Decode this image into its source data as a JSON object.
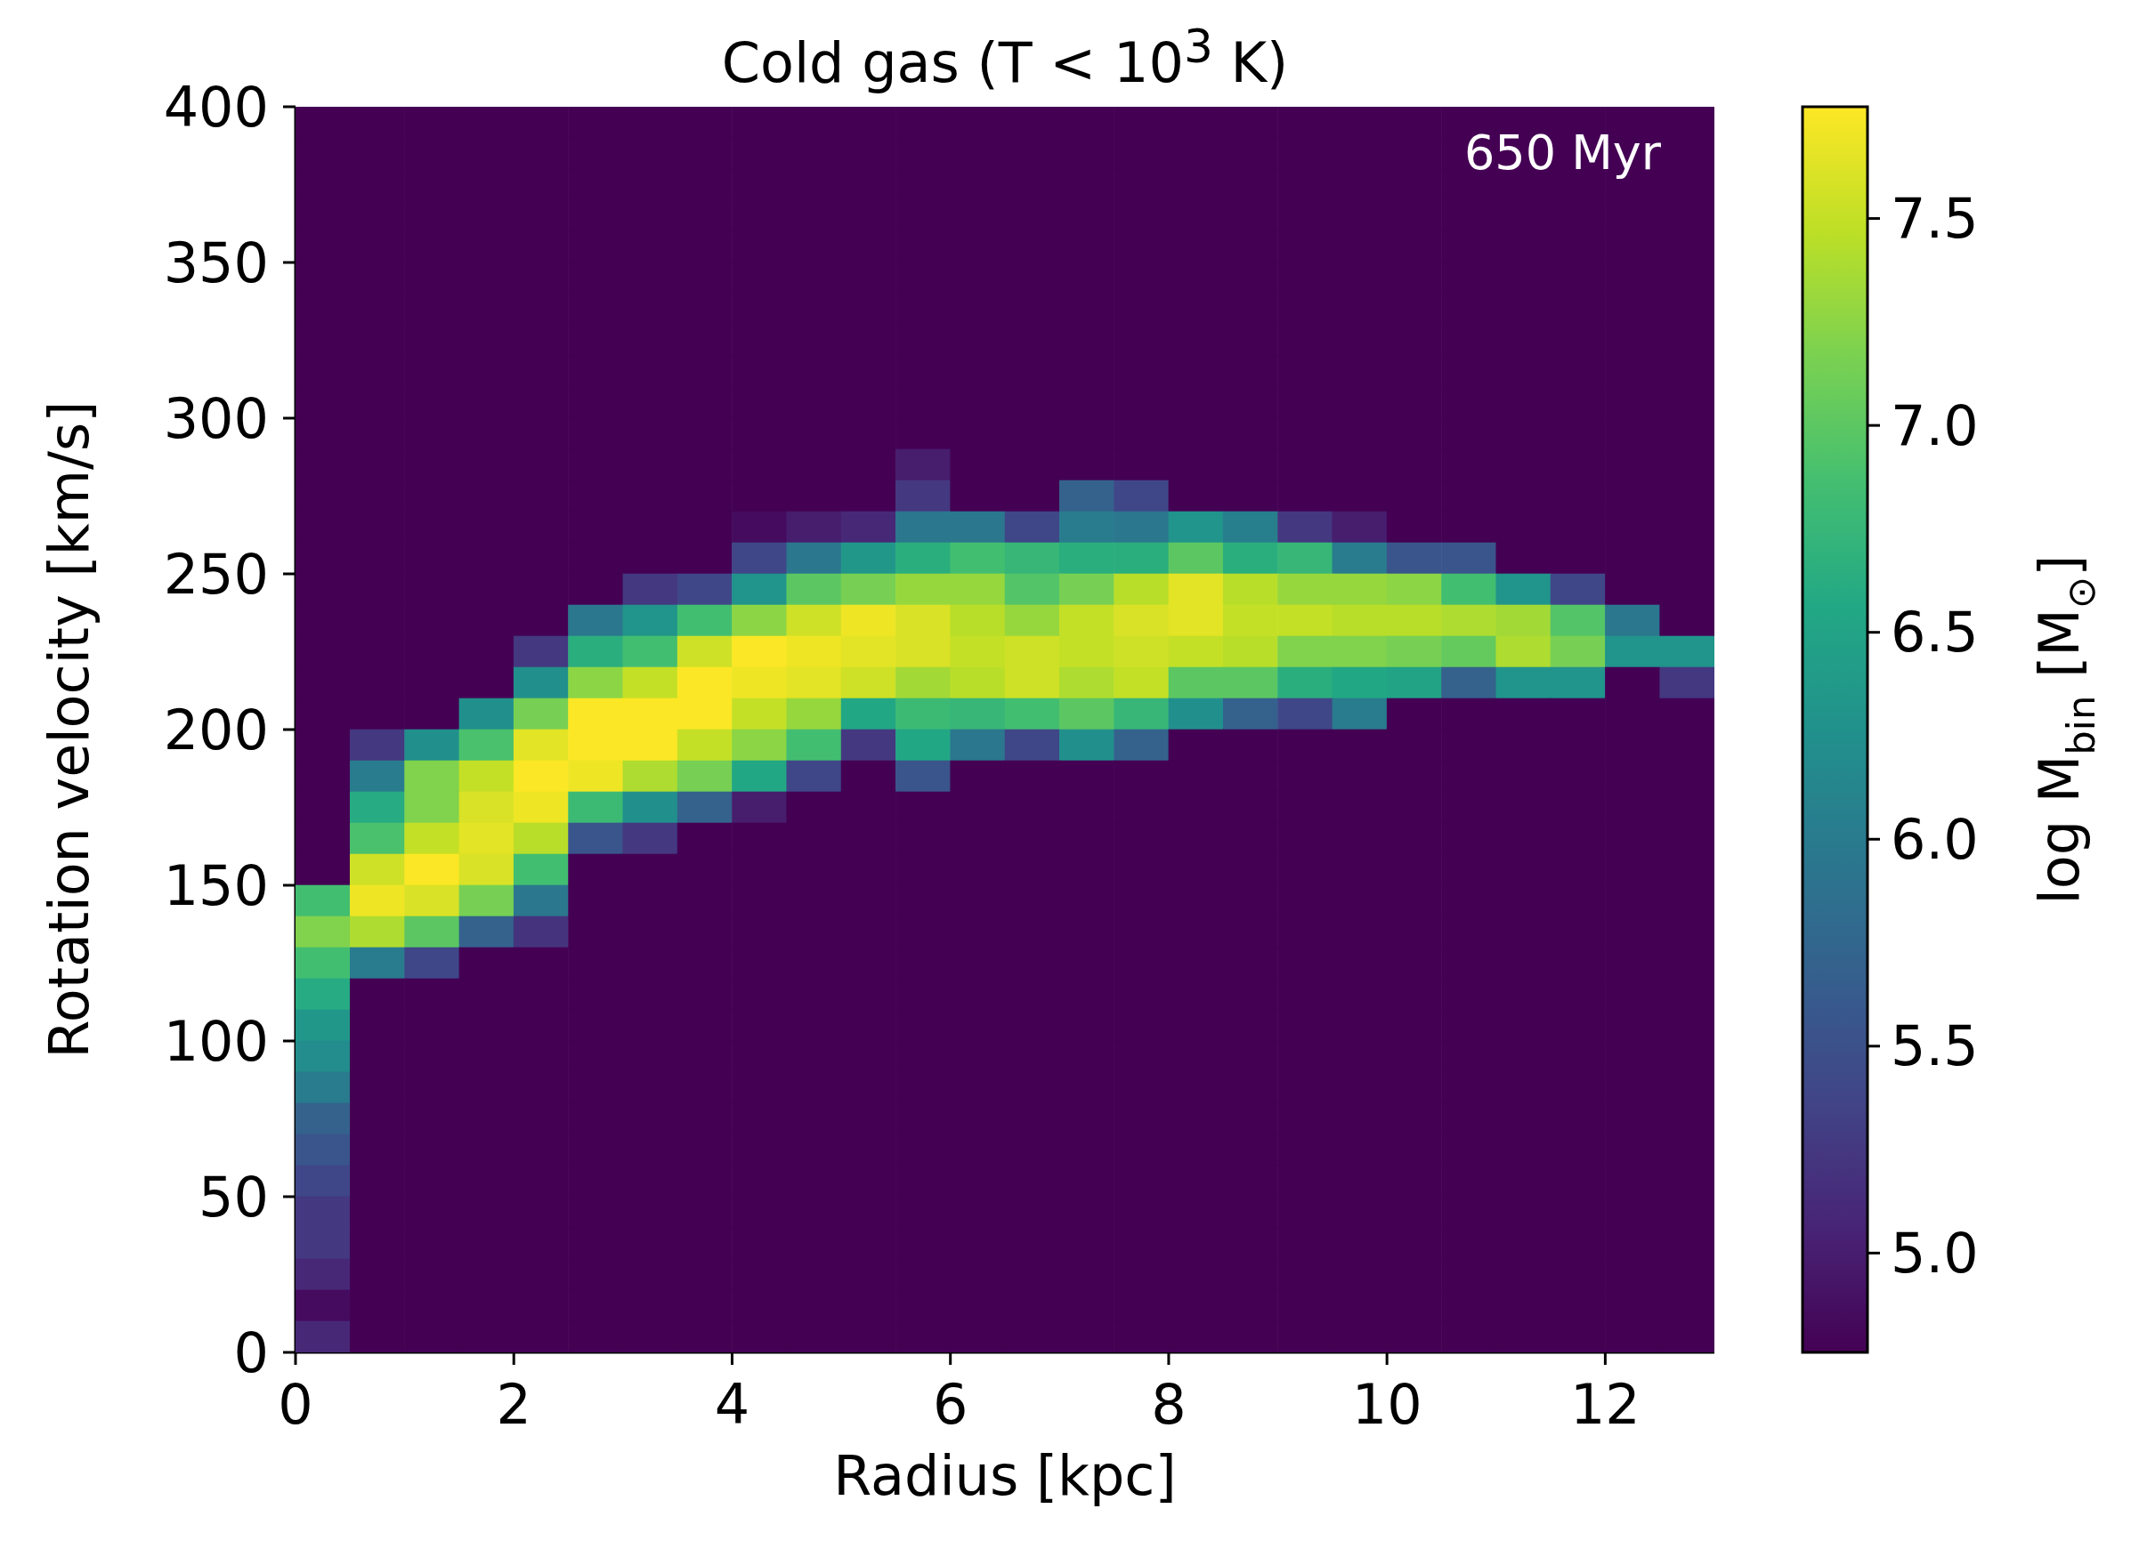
{
  "chart_data": {
    "type": "heatmap",
    "title": "Cold gas (T < 10$^{3}$ K)",
    "xlabel": "Radius [kpc]",
    "ylabel": "Rotation velocity [km/s]",
    "clabel": "log M$_{bin}$ [M$_{⊙}$]",
    "annotations": [
      "650 Myr"
    ],
    "xlim": [
      0,
      13
    ],
    "xticks": [
      0,
      2,
      4,
      6,
      8,
      10,
      12
    ],
    "ylim": [
      0,
      400
    ],
    "yticks": [
      0,
      50,
      100,
      150,
      200,
      250,
      300,
      350,
      400
    ],
    "clim": [
      4.76,
      7.77
    ],
    "cticks": [
      {
        "value": 5,
        "label": "5.0"
      },
      5.5,
      {
        "value": 6,
        "label": "6.0"
      },
      6.5,
      {
        "value": 7,
        "label": "7.0"
      },
      7.5
    ],
    "cells": [
      [
        4.76,
        4.76,
        4.76,
        4.76,
        4.76,
        4.76,
        4.76,
        4.76,
        4.76,
        4.76,
        4.76,
        4.76,
        4.76,
        4.76,
        4.76,
        4.76,
        4.76,
        4.76,
        4.76,
        4.76,
        4.76,
        4.76,
        4.76,
        4.76,
        4.76,
        4.76
      ],
      [
        4.76,
        4.76,
        4.76,
        4.76,
        4.76,
        4.76,
        4.76,
        4.76,
        4.76,
        4.76,
        4.76,
        4.76,
        4.76,
        4.76,
        4.76,
        4.76,
        4.76,
        4.76,
        4.76,
        4.76,
        4.76,
        4.76,
        4.76,
        4.76,
        4.76,
        4.76
      ],
      [
        4.76,
        4.76,
        4.76,
        4.76,
        4.76,
        4.76,
        4.76,
        4.76,
        4.76,
        4.76,
        4.76,
        4.76,
        4.76,
        4.76,
        4.76,
        4.76,
        4.76,
        4.76,
        4.76,
        4.76,
        4.76,
        4.76,
        4.76,
        4.76,
        4.76,
        4.76
      ],
      [
        4.76,
        4.76,
        4.76,
        4.76,
        4.76,
        4.76,
        4.76,
        4.76,
        4.76,
        4.76,
        4.76,
        4.76,
        4.76,
        4.76,
        4.76,
        4.76,
        4.76,
        4.76,
        4.76,
        4.76,
        4.76,
        4.76,
        4.76,
        4.76,
        4.76,
        4.76
      ],
      [
        4.76,
        4.76,
        4.76,
        4.76,
        4.76,
        4.76,
        4.76,
        4.76,
        4.76,
        4.76,
        4.76,
        4.76,
        4.76,
        4.76,
        4.76,
        4.76,
        4.76,
        4.76,
        4.76,
        4.76,
        4.76,
        4.76,
        4.76,
        4.76,
        4.76,
        4.76
      ],
      [
        4.76,
        4.76,
        4.76,
        4.76,
        4.76,
        4.76,
        4.76,
        4.76,
        4.76,
        4.76,
        4.76,
        4.76,
        4.76,
        4.76,
        4.76,
        4.76,
        4.76,
        4.76,
        4.76,
        4.76,
        4.76,
        4.76,
        4.76,
        4.76,
        4.76,
        4.76
      ],
      [
        4.76,
        4.76,
        4.76,
        4.76,
        4.76,
        4.76,
        4.76,
        4.76,
        4.76,
        4.76,
        4.76,
        4.76,
        4.76,
        4.76,
        4.76,
        4.76,
        4.76,
        4.76,
        4.76,
        4.76,
        4.76,
        4.76,
        4.76,
        4.76,
        4.76,
        4.76
      ],
      [
        4.76,
        4.76,
        4.76,
        4.76,
        4.76,
        4.76,
        4.76,
        4.76,
        4.76,
        4.76,
        4.76,
        4.76,
        4.76,
        4.76,
        4.76,
        4.76,
        4.76,
        4.76,
        4.76,
        4.76,
        4.76,
        4.76,
        4.76,
        4.76,
        4.76,
        4.76
      ],
      [
        4.76,
        4.76,
        4.76,
        4.76,
        4.76,
        4.76,
        4.76,
        4.76,
        4.76,
        4.76,
        4.76,
        4.76,
        4.76,
        4.76,
        4.76,
        4.76,
        4.76,
        4.76,
        4.76,
        4.76,
        4.76,
        4.76,
        4.76,
        4.76,
        4.76,
        4.76
      ],
      [
        4.76,
        4.76,
        4.76,
        4.76,
        4.76,
        4.76,
        4.76,
        4.76,
        4.76,
        4.76,
        4.76,
        4.76,
        4.76,
        4.76,
        4.76,
        4.76,
        4.76,
        4.76,
        4.76,
        4.76,
        4.76,
        4.76,
        4.76,
        4.76,
        4.76,
        4.76
      ],
      [
        4.76,
        4.76,
        4.76,
        4.76,
        4.76,
        4.76,
        4.76,
        4.76,
        4.76,
        4.76,
        4.76,
        4.76,
        4.76,
        4.76,
        4.76,
        4.76,
        4.76,
        4.76,
        4.76,
        4.76,
        4.76,
        4.76,
        4.76,
        4.76,
        4.76,
        4.76
      ],
      [
        4.76,
        4.76,
        4.76,
        4.76,
        4.76,
        4.76,
        4.76,
        4.76,
        4.76,
        4.76,
        4.76,
        5.0,
        4.76,
        4.76,
        4.76,
        4.76,
        4.76,
        4.76,
        4.76,
        4.76,
        4.76,
        4.76,
        4.76,
        4.76,
        4.76,
        4.76
      ],
      [
        4.76,
        4.76,
        4.76,
        4.76,
        4.76,
        4.76,
        4.76,
        4.76,
        4.76,
        4.76,
        4.76,
        5.25,
        4.76,
        4.76,
        5.7,
        5.4,
        4.76,
        4.76,
        4.76,
        4.76,
        4.76,
        4.76,
        4.76,
        4.76,
        4.76,
        4.76
      ],
      [
        4.76,
        4.76,
        4.76,
        4.76,
        4.76,
        4.76,
        4.76,
        4.76,
        4.85,
        5.0,
        5.1,
        5.95,
        5.95,
        5.4,
        6.0,
        5.95,
        6.3,
        6.05,
        5.25,
        5.0,
        4.76,
        4.76,
        4.76,
        4.76,
        4.76,
        4.76
      ],
      [
        4.76,
        4.76,
        4.76,
        4.76,
        4.76,
        4.76,
        4.76,
        4.76,
        5.4,
        5.95,
        6.35,
        6.65,
        6.85,
        6.75,
        6.65,
        6.65,
        7.0,
        6.65,
        6.75,
        6.0,
        5.55,
        5.55,
        4.76,
        4.76,
        4.76,
        4.76
      ],
      [
        4.76,
        4.76,
        4.76,
        4.76,
        4.76,
        4.76,
        5.25,
        5.4,
        6.3,
        7.0,
        7.15,
        7.3,
        7.3,
        6.95,
        7.15,
        7.45,
        7.65,
        7.45,
        7.3,
        7.3,
        7.25,
        6.85,
        6.3,
        5.4,
        4.76,
        4.76
      ],
      [
        4.76,
        4.76,
        4.76,
        4.76,
        4.76,
        5.95,
        6.3,
        6.85,
        7.25,
        7.55,
        7.7,
        7.6,
        7.45,
        7.3,
        7.5,
        7.6,
        7.65,
        7.5,
        7.5,
        7.45,
        7.45,
        7.4,
        7.35,
        6.95,
        5.95,
        4.76
      ],
      [
        4.76,
        4.76,
        4.76,
        4.76,
        5.25,
        6.65,
        6.85,
        7.55,
        7.76,
        7.7,
        7.65,
        7.6,
        7.5,
        7.55,
        7.5,
        7.55,
        7.5,
        7.45,
        7.2,
        7.2,
        7.15,
        7.05,
        7.4,
        7.15,
        6.3,
        6.3
      ],
      [
        4.76,
        4.76,
        4.76,
        4.76,
        6.25,
        7.25,
        7.5,
        7.76,
        7.7,
        7.65,
        7.55,
        7.35,
        7.45,
        7.55,
        7.4,
        7.5,
        7.0,
        7.0,
        6.65,
        6.55,
        6.5,
        5.7,
        6.3,
        6.3,
        4.76,
        5.25
      ],
      [
        4.76,
        4.76,
        4.76,
        6.25,
        7.15,
        7.76,
        7.76,
        7.76,
        7.5,
        7.3,
        6.55,
        6.8,
        6.75,
        6.85,
        7.0,
        6.75,
        6.25,
        5.7,
        5.4,
        6.0,
        4.76,
        4.76,
        4.76,
        4.76,
        4.76,
        4.76
      ],
      [
        4.76,
        5.25,
        6.25,
        6.9,
        7.65,
        7.76,
        7.76,
        7.5,
        7.25,
        6.85,
        5.25,
        6.55,
        5.95,
        5.4,
        6.25,
        5.7,
        4.76,
        4.76,
        4.76,
        4.76,
        4.76,
        4.76,
        4.76,
        4.76,
        4.76,
        4.76
      ],
      [
        4.76,
        6.0,
        7.2,
        7.5,
        7.76,
        7.7,
        7.4,
        7.15,
        6.55,
        5.4,
        4.76,
        5.55,
        4.76,
        4.76,
        4.76,
        4.76,
        4.76,
        4.76,
        4.76,
        4.76,
        4.76,
        4.76,
        4.76,
        4.76,
        4.76,
        4.76
      ],
      [
        4.76,
        6.6,
        7.2,
        7.6,
        7.7,
        6.8,
        6.25,
        5.7,
        5.0,
        4.76,
        4.76,
        4.76,
        4.76,
        4.76,
        4.76,
        4.76,
        4.76,
        4.76,
        4.76,
        4.76,
        4.76,
        4.76,
        4.76,
        4.76,
        4.76,
        4.76
      ],
      [
        4.76,
        6.9,
        7.5,
        7.65,
        7.45,
        5.55,
        5.25,
        4.76,
        4.76,
        4.76,
        4.76,
        4.76,
        4.76,
        4.76,
        4.76,
        4.76,
        4.76,
        4.76,
        4.76,
        4.76,
        4.76,
        4.76,
        4.76,
        4.76,
        4.76,
        4.76
      ],
      [
        4.76,
        7.55,
        7.76,
        7.6,
        6.85,
        4.76,
        4.76,
        4.76,
        4.76,
        4.76,
        4.76,
        4.76,
        4.76,
        4.76,
        4.76,
        4.76,
        4.76,
        4.76,
        4.76,
        4.76,
        4.76,
        4.76,
        4.76,
        4.76,
        4.76,
        4.76
      ],
      [
        6.85,
        7.7,
        7.6,
        7.15,
        5.95,
        4.76,
        4.76,
        4.76,
        4.76,
        4.76,
        4.76,
        4.76,
        4.76,
        4.76,
        4.76,
        4.76,
        4.76,
        4.76,
        4.76,
        4.76,
        4.76,
        4.76,
        4.76,
        4.76,
        4.76,
        4.76
      ],
      [
        7.2,
        7.4,
        7.0,
        5.7,
        5.2,
        4.76,
        4.76,
        4.76,
        4.76,
        4.76,
        4.76,
        4.76,
        4.76,
        4.76,
        4.76,
        4.76,
        4.76,
        4.76,
        4.76,
        4.76,
        4.76,
        4.76,
        4.76,
        4.76,
        4.76,
        4.76
      ],
      [
        6.85,
        6.0,
        5.4,
        4.76,
        4.76,
        4.76,
        4.76,
        4.76,
        4.76,
        4.76,
        4.76,
        4.76,
        4.76,
        4.76,
        4.76,
        4.76,
        4.76,
        4.76,
        4.76,
        4.76,
        4.76,
        4.76,
        4.76,
        4.76,
        4.76,
        4.76
      ],
      [
        6.6,
        4.76,
        4.76,
        4.76,
        4.76,
        4.76,
        4.76,
        4.76,
        4.76,
        4.76,
        4.76,
        4.76,
        4.76,
        4.76,
        4.76,
        4.76,
        4.76,
        4.76,
        4.76,
        4.76,
        4.76,
        4.76,
        4.76,
        4.76,
        4.76,
        4.76
      ],
      [
        6.35,
        4.76,
        4.76,
        4.76,
        4.76,
        4.76,
        4.76,
        4.76,
        4.76,
        4.76,
        4.76,
        4.76,
        4.76,
        4.76,
        4.76,
        4.76,
        4.76,
        4.76,
        4.76,
        4.76,
        4.76,
        4.76,
        4.76,
        4.76,
        4.76,
        4.76
      ],
      [
        6.2,
        4.76,
        4.76,
        4.76,
        4.76,
        4.76,
        4.76,
        4.76,
        4.76,
        4.76,
        4.76,
        4.76,
        4.76,
        4.76,
        4.76,
        4.76,
        4.76,
        4.76,
        4.76,
        4.76,
        4.76,
        4.76,
        4.76,
        4.76,
        4.76,
        4.76
      ],
      [
        6.0,
        4.76,
        4.76,
        4.76,
        4.76,
        4.76,
        4.76,
        4.76,
        4.76,
        4.76,
        4.76,
        4.76,
        4.76,
        4.76,
        4.76,
        4.76,
        4.76,
        4.76,
        4.76,
        4.76,
        4.76,
        4.76,
        4.76,
        4.76,
        4.76,
        4.76
      ],
      [
        5.7,
        4.76,
        4.76,
        4.76,
        4.76,
        4.76,
        4.76,
        4.76,
        4.76,
        4.76,
        4.76,
        4.76,
        4.76,
        4.76,
        4.76,
        4.76,
        4.76,
        4.76,
        4.76,
        4.76,
        4.76,
        4.76,
        4.76,
        4.76,
        4.76,
        4.76
      ],
      [
        5.55,
        4.76,
        4.76,
        4.76,
        4.76,
        4.76,
        4.76,
        4.76,
        4.76,
        4.76,
        4.76,
        4.76,
        4.76,
        4.76,
        4.76,
        4.76,
        4.76,
        4.76,
        4.76,
        4.76,
        4.76,
        4.76,
        4.76,
        4.76,
        4.76,
        4.76
      ],
      [
        5.4,
        4.76,
        4.76,
        4.76,
        4.76,
        4.76,
        4.76,
        4.76,
        4.76,
        4.76,
        4.76,
        4.76,
        4.76,
        4.76,
        4.76,
        4.76,
        4.76,
        4.76,
        4.76,
        4.76,
        4.76,
        4.76,
        4.76,
        4.76,
        4.76,
        4.76
      ],
      [
        5.25,
        4.76,
        4.76,
        4.76,
        4.76,
        4.76,
        4.76,
        4.76,
        4.76,
        4.76,
        4.76,
        4.76,
        4.76,
        4.76,
        4.76,
        4.76,
        4.76,
        4.76,
        4.76,
        4.76,
        4.76,
        4.76,
        4.76,
        4.76,
        4.76,
        4.76
      ],
      [
        5.25,
        4.76,
        4.76,
        4.76,
        4.76,
        4.76,
        4.76,
        4.76,
        4.76,
        4.76,
        4.76,
        4.76,
        4.76,
        4.76,
        4.76,
        4.76,
        4.76,
        4.76,
        4.76,
        4.76,
        4.76,
        4.76,
        4.76,
        4.76,
        4.76,
        4.76
      ],
      [
        5.1,
        4.76,
        4.76,
        4.76,
        4.76,
        4.76,
        4.76,
        4.76,
        4.76,
        4.76,
        4.76,
        4.76,
        4.76,
        4.76,
        4.76,
        4.76,
        4.76,
        4.76,
        4.76,
        4.76,
        4.76,
        4.76,
        4.76,
        4.76,
        4.76,
        4.76
      ],
      [
        4.85,
        4.76,
        4.76,
        4.76,
        4.76,
        4.76,
        4.76,
        4.76,
        4.76,
        4.76,
        4.76,
        4.76,
        4.76,
        4.76,
        4.76,
        4.76,
        4.76,
        4.76,
        4.76,
        4.76,
        4.76,
        4.76,
        4.76,
        4.76,
        4.76,
        4.76
      ],
      [
        5.1,
        4.76,
        4.76,
        4.76,
        4.76,
        4.76,
        4.76,
        4.76,
        4.76,
        4.76,
        4.76,
        4.76,
        4.76,
        4.76,
        4.76,
        4.76,
        4.76,
        4.76,
        4.76,
        4.76,
        4.76,
        4.76,
        4.76,
        4.76,
        4.76,
        4.76
      ]
    ]
  }
}
